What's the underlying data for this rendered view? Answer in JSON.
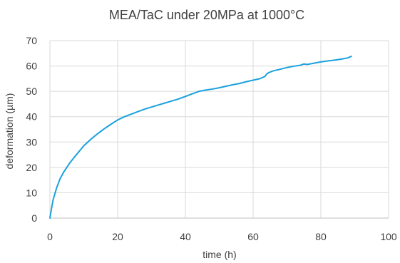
{
  "chart_data": {
    "type": "line",
    "title": "MEA/TaC under 20MPa at 1000°C",
    "xlabel": "time (h)",
    "ylabel": "deformation (µm)",
    "xlim": [
      0,
      100
    ],
    "ylim": [
      0,
      70
    ],
    "x_ticks": [
      "0",
      "20",
      "40",
      "60",
      "80",
      "100"
    ],
    "y_ticks": [
      "0",
      "10",
      "20",
      "30",
      "40",
      "50",
      "60",
      "70"
    ],
    "grid": true,
    "legend": "none",
    "series": [
      {
        "color": "#1ba1dc",
        "x": [
          0,
          0.5,
          1,
          2,
          3,
          4,
          6,
          8,
          10,
          12,
          14,
          16,
          18,
          20,
          22,
          24,
          26,
          28,
          30,
          32,
          34,
          36,
          38,
          40,
          42,
          44,
          46,
          48,
          50,
          52,
          54,
          56,
          58,
          60,
          62,
          63.5,
          64,
          64.5,
          65,
          66,
          68,
          70,
          72,
          74,
          75,
          76,
          78,
          80,
          82,
          84,
          86,
          88,
          89
        ],
        "y": [
          0,
          4,
          7.5,
          12,
          15.5,
          18,
          22,
          25.3,
          28.5,
          31,
          33.2,
          35.2,
          37,
          38.7,
          40,
          41,
          42,
          43,
          43.8,
          44.6,
          45.4,
          46.2,
          47,
          48,
          49,
          50,
          50.5,
          50.9,
          51.4,
          52,
          52.6,
          53.1,
          53.8,
          54.4,
          55,
          55.9,
          56.8,
          57.3,
          57.6,
          58.1,
          58.7,
          59.4,
          59.9,
          60.3,
          60.8,
          60.6,
          61.1,
          61.6,
          62,
          62.3,
          62.7,
          63.2,
          63.8
        ]
      }
    ]
  }
}
